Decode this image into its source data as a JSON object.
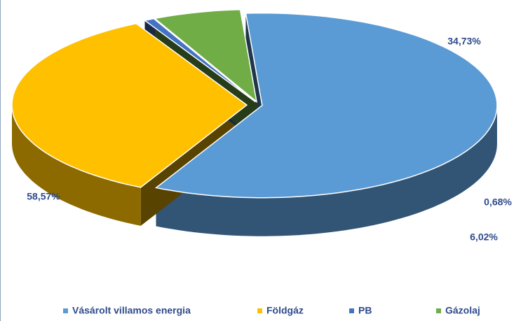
{
  "chart_data": {
    "type": "pie3d",
    "categories": [
      "Vásárolt villamos energia",
      "Földgáz",
      "PB",
      "Gázolaj"
    ],
    "values": [
      58.57,
      34.73,
      0.68,
      6.02
    ],
    "value_labels": [
      "58,57%",
      "34,73%",
      "0,68%",
      "6,02%"
    ],
    "colors": [
      "#5b9bd5",
      "#ffc000",
      "#4472c4",
      "#70ad47"
    ],
    "legend": "bottom"
  }
}
